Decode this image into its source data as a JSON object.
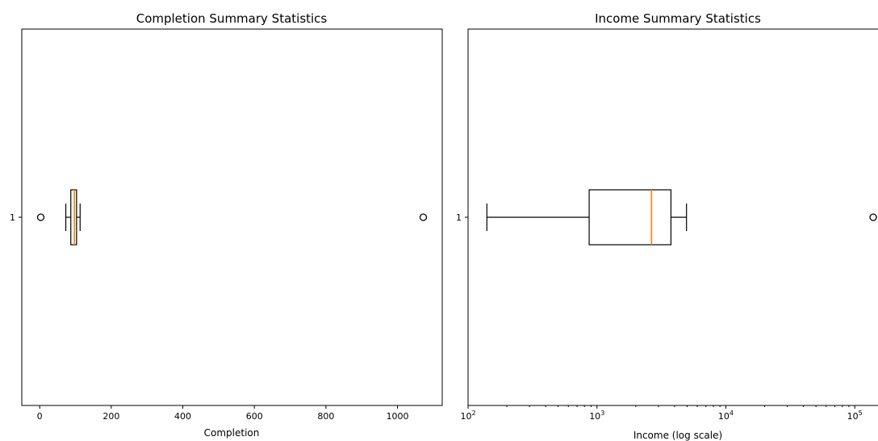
{
  "chart_data": [
    {
      "type": "boxplot",
      "title": "Completion Summary Statistics",
      "xlabel": "Completion",
      "ylabel": "",
      "xscale": "linear",
      "xlim": [
        -50,
        1125
      ],
      "xticks": [
        0,
        200,
        400,
        600,
        800,
        1000
      ],
      "xtick_labels": [
        "0",
        "200",
        "400",
        "600",
        "800",
        "1000"
      ],
      "categories": [
        "1"
      ],
      "boxes": [
        {
          "label": "1",
          "whislo": 73,
          "q1": 87,
          "med": 97,
          "q3": 103,
          "whishi": 113,
          "fliers": [
            3,
            1072
          ]
        }
      ],
      "grid": false
    },
    {
      "type": "boxplot",
      "title": "Income Summary Statistics",
      "xlabel": "Income (log scale)",
      "ylabel": "",
      "xscale": "log",
      "xlim": [
        100,
        180000
      ],
      "xticks": [
        100,
        1000,
        10000,
        100000
      ],
      "xtick_labels": [
        {
          "base": "10",
          "exp": "2"
        },
        {
          "base": "10",
          "exp": "3"
        },
        {
          "base": "10",
          "exp": "4"
        },
        {
          "base": "10",
          "exp": "5"
        }
      ],
      "categories": [
        "1"
      ],
      "boxes": [
        {
          "label": "1",
          "whislo": 140,
          "q1": 870,
          "med": 2650,
          "q3": 3750,
          "whishi": 4950,
          "fliers": [
            139000
          ]
        }
      ],
      "grid": false
    }
  ]
}
